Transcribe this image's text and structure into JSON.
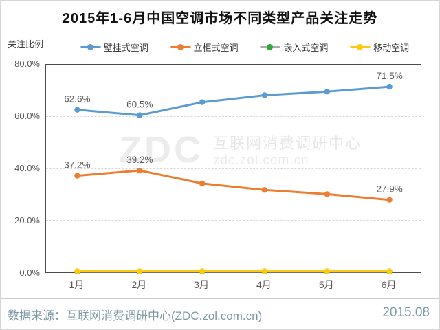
{
  "title": "2015年1-6月中国空调市场不同类型产品关注走势",
  "y_axis_title": "关注比例",
  "watermark": {
    "logo": "ZDC",
    "line1": "互联网消费调研中心",
    "line2": "zdc.zol.com.cn"
  },
  "footer": {
    "source": "数据来源：互联网消费调研中心(ZDC.zol.com.cn)",
    "date": "2015.08"
  },
  "chart_data": {
    "type": "line",
    "title": "2015年1-6月中国空调市场不同类型产品关注走势",
    "xlabel": "",
    "ylabel": "关注比例",
    "categories": [
      "1月",
      "2月",
      "3月",
      "4月",
      "5月",
      "6月"
    ],
    "ylim": [
      0,
      80
    ],
    "ytick_labels": [
      "80.0%",
      "60.0%",
      "40.0%",
      "20.0%",
      "0.0%"
    ],
    "grid": "horizontal dashed at 20/40/60",
    "legend_position": "top",
    "series": [
      {
        "name": "嵌入式空调",
        "line_color": "#ababab",
        "marker_color": "#2ea836",
        "values": [
          0.3,
          0.3,
          0.3,
          0.3,
          0.3,
          0.3
        ],
        "labels": [
          null,
          null,
          null,
          null,
          null,
          null
        ]
      },
      {
        "name": "移动空调",
        "line_color": "#ffc90e",
        "marker_color": "#ffc90e",
        "values": [
          0.4,
          0.4,
          0.4,
          0.4,
          0.4,
          0.4
        ],
        "labels": [
          null,
          null,
          null,
          null,
          null,
          null
        ]
      },
      {
        "name": "立柜式空调",
        "line_color": "#ed7d31",
        "marker_color": "#ed7d31",
        "values": [
          37.2,
          39.2,
          34.2,
          31.7,
          30.1,
          27.9
        ],
        "labels": [
          "37.2%",
          "39.2%",
          null,
          null,
          null,
          "27.9%"
        ]
      },
      {
        "name": "壁挂式空调",
        "line_color": "#5b9bd5",
        "marker_color": "#5b9bd5",
        "values": [
          62.6,
          60.5,
          65.5,
          68.2,
          69.6,
          71.5
        ],
        "labels": [
          "62.6%",
          "60.5%",
          null,
          null,
          null,
          "71.5%"
        ]
      }
    ],
    "legend_order": [
      "壁挂式空调",
      "立柜式空调",
      "嵌入式空调",
      "移动空调"
    ]
  }
}
